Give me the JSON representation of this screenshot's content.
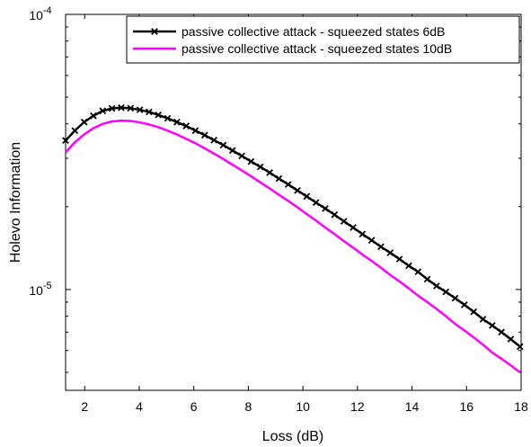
{
  "chart_data": {
    "type": "line",
    "xlabel": "Loss (dB)",
    "ylabel": "Holevo Information",
    "xlim": [
      1.3,
      18
    ],
    "ylim": [
      4.3e-06,
      0.0001
    ],
    "yscale": "log",
    "grid": false,
    "legend_position": "top-right",
    "x_ticks": [
      "2",
      "4",
      "6",
      "8",
      "10",
      "12",
      "14",
      "16",
      "18"
    ],
    "y_ticks": [
      {
        "base": "10",
        "exp": "-5",
        "value": 1e-05
      },
      {
        "base": "10",
        "exp": "-4",
        "value": 0.0001
      }
    ],
    "series": [
      {
        "name": "passive collective attack - squeezed states 6dB",
        "color": "#000000",
        "marker": "x",
        "x": [
          1.3,
          1.64,
          1.98,
          2.32,
          2.66,
          3.0,
          3.34,
          3.68,
          4.02,
          4.36,
          4.7,
          5.04,
          5.38,
          5.72,
          6.06,
          6.4,
          6.74,
          7.08,
          7.42,
          7.76,
          8.1,
          8.44,
          8.78,
          9.12,
          9.46,
          9.8,
          10.14,
          10.48,
          10.82,
          11.16,
          11.5,
          11.84,
          12.18,
          12.52,
          12.86,
          13.2,
          13.54,
          13.88,
          14.22,
          14.56,
          14.9,
          15.24,
          15.58,
          15.92,
          16.26,
          16.6,
          16.94,
          17.28,
          17.62,
          17.96
        ],
        "y": [
          3.48e-05,
          3.78e-05,
          4.06e-05,
          4.28e-05,
          4.46e-05,
          4.55e-05,
          4.58e-05,
          4.56e-05,
          4.5e-05,
          4.42e-05,
          4.31e-05,
          4.19e-05,
          4.06e-05,
          3.93e-05,
          3.78e-05,
          3.64e-05,
          3.49e-05,
          3.35e-05,
          3.2e-05,
          3.06e-05,
          2.92e-05,
          2.79e-05,
          2.66e-05,
          2.53e-05,
          2.41e-05,
          2.29e-05,
          2.18e-05,
          2.07e-05,
          1.97e-05,
          1.87e-05,
          1.77e-05,
          1.68e-05,
          1.59e-05,
          1.51e-05,
          1.43e-05,
          1.36e-05,
          1.29e-05,
          1.22e-05,
          1.16e-05,
          1.09e-05,
          1.03e-05,
          9.8e-06,
          9.3e-06,
          8.8e-06,
          8.3e-06,
          7.8e-06,
          7.4e-06,
          7e-06,
          6.6e-06,
          6.2e-06
        ]
      },
      {
        "name": "passive collective attack - squeezed states 10dB",
        "color": "#ff00ff",
        "marker": "none",
        "x": [
          1.3,
          1.64,
          1.98,
          2.32,
          2.66,
          3.0,
          3.34,
          3.68,
          4.02,
          4.36,
          4.7,
          5.04,
          5.38,
          5.72,
          6.06,
          6.4,
          6.74,
          7.08,
          7.42,
          7.76,
          8.1,
          8.44,
          8.78,
          9.12,
          9.46,
          9.8,
          10.14,
          10.48,
          10.82,
          11.16,
          11.5,
          11.84,
          12.18,
          12.52,
          12.86,
          13.2,
          13.54,
          13.88,
          14.22,
          14.56,
          14.9,
          15.24,
          15.58,
          15.92,
          16.26,
          16.6,
          16.94,
          17.28,
          17.62,
          17.96
        ],
        "y": [
          3.15e-05,
          3.43e-05,
          3.66e-05,
          3.86e-05,
          4e-05,
          4.08e-05,
          4.11e-05,
          4.1e-05,
          4.05e-05,
          3.98e-05,
          3.89e-05,
          3.78e-05,
          3.66e-05,
          3.53e-05,
          3.4e-05,
          3.26e-05,
          3.12e-05,
          2.98e-05,
          2.84e-05,
          2.71e-05,
          2.58e-05,
          2.45e-05,
          2.33e-05,
          2.21e-05,
          2.1e-05,
          1.99e-05,
          1.88e-05,
          1.78e-05,
          1.68e-05,
          1.59e-05,
          1.5e-05,
          1.42e-05,
          1.34e-05,
          1.27e-05,
          1.2e-05,
          1.13e-05,
          1.07e-05,
          1.01e-05,
          9.5e-06,
          9e-06,
          8.5e-06,
          8e-06,
          7.5e-06,
          7.1e-06,
          6.7e-06,
          6.3e-06,
          5.9e-06,
          5.6e-06,
          5.3e-06,
          5e-06
        ]
      }
    ]
  }
}
